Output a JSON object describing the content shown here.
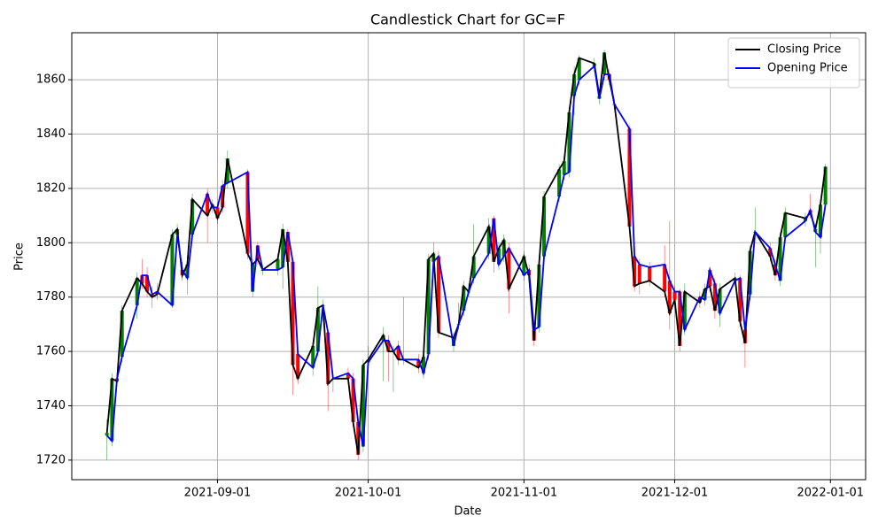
{
  "chart_data": {
    "type": "candlestick",
    "title": "Candlestick Chart for GC=F",
    "x_label": "Date",
    "y_label": "Price",
    "x": [
      "2021-08-10",
      "2021-08-11",
      "2021-08-12",
      "2021-08-13",
      "2021-08-16",
      "2021-08-17",
      "2021-08-18",
      "2021-08-19",
      "2021-08-20",
      "2021-08-23",
      "2021-08-24",
      "2021-08-25",
      "2021-08-26",
      "2021-08-27",
      "2021-08-30",
      "2021-08-31",
      "2021-09-01",
      "2021-09-02",
      "2021-09-03",
      "2021-09-07",
      "2021-09-08",
      "2021-09-09",
      "2021-09-10",
      "2021-09-13",
      "2021-09-14",
      "2021-09-15",
      "2021-09-16",
      "2021-09-17",
      "2021-09-20",
      "2021-09-21",
      "2021-09-22",
      "2021-09-23",
      "2021-09-24",
      "2021-09-27",
      "2021-09-28",
      "2021-09-29",
      "2021-09-30",
      "2021-10-01",
      "2021-10-04",
      "2021-10-05",
      "2021-10-06",
      "2021-10-07",
      "2021-10-08",
      "2021-10-11",
      "2021-10-12",
      "2021-10-13",
      "2021-10-14",
      "2021-10-15",
      "2021-10-18",
      "2021-10-19",
      "2021-10-20",
      "2021-10-21",
      "2021-10-22",
      "2021-10-25",
      "2021-10-26",
      "2021-10-27",
      "2021-10-28",
      "2021-10-29",
      "2021-11-01",
      "2021-11-02",
      "2021-11-03",
      "2021-11-04",
      "2021-11-05",
      "2021-11-08",
      "2021-11-09",
      "2021-11-10",
      "2021-11-11",
      "2021-11-12",
      "2021-11-15",
      "2021-11-16",
      "2021-11-17",
      "2021-11-18",
      "2021-11-19",
      "2021-11-22",
      "2021-11-23",
      "2021-11-24",
      "2021-11-26",
      "2021-11-29",
      "2021-11-30",
      "2021-12-01",
      "2021-12-02",
      "2021-12-03",
      "2021-12-06",
      "2021-12-07",
      "2021-12-08",
      "2021-12-09",
      "2021-12-10",
      "2021-12-13",
      "2021-12-14",
      "2021-12-15",
      "2021-12-16",
      "2021-12-17",
      "2021-12-20",
      "2021-12-21",
      "2021-12-22",
      "2021-12-23",
      "2021-12-27",
      "2021-12-28",
      "2021-12-29",
      "2021-12-30",
      "2021-12-31"
    ],
    "series": [
      {
        "name": "Closing Price",
        "color": "#000000",
        "values": [
          1730,
          1750,
          1749,
          1775,
          1787,
          1785,
          1782,
          1780,
          1781,
          1803,
          1805,
          1788,
          1792,
          1816,
          1810,
          1814,
          1809,
          1813,
          1831,
          1796,
          1792,
          1794,
          1790,
          1794,
          1805,
          1793,
          1755,
          1750,
          1762,
          1776,
          1777,
          1748,
          1750,
          1750,
          1734,
          1722,
          1755,
          1757,
          1766,
          1760,
          1760,
          1757,
          1757,
          1754,
          1758,
          1794,
          1796,
          1767,
          1765,
          1770,
          1784,
          1782,
          1795,
          1806,
          1793,
          1798,
          1801,
          1783,
          1795,
          1788,
          1764,
          1792,
          1817,
          1827,
          1830,
          1848,
          1862,
          1868,
          1866,
          1854,
          1870,
          1860,
          1851,
          1806,
          1784,
          1785,
          1786,
          1782,
          1774,
          1779,
          1762,
          1782,
          1778,
          1783,
          1784,
          1775,
          1783,
          1787,
          1771,
          1763,
          1797,
          1804,
          1795,
          1788,
          1802,
          1811,
          1809,
          1811,
          1805,
          1814,
          1828
        ]
      },
      {
        "name": "Opening Price",
        "color": "#0000ff",
        "values": [
          1729,
          1727,
          1750,
          1758,
          1777,
          1788,
          1788,
          1781,
          1782,
          1777,
          1803,
          1790,
          1787,
          1803,
          1818,
          1813,
          1813,
          1821,
          1822,
          1826,
          1782,
          1799,
          1790,
          1790,
          1791,
          1804,
          1793,
          1759,
          1754,
          1760,
          1777,
          1767,
          1750,
          1752,
          1750,
          1734,
          1725,
          1756,
          1764,
          1764,
          1760,
          1762,
          1757,
          1757,
          1752,
          1759,
          1793,
          1795,
          1762,
          1770,
          1775,
          1782,
          1787,
          1796,
          1809,
          1792,
          1795,
          1798,
          1788,
          1790,
          1768,
          1769,
          1795,
          1817,
          1825,
          1826,
          1854,
          1860,
          1865,
          1853,
          1862,
          1862,
          1851,
          1842,
          1795,
          1792,
          1791,
          1792,
          1786,
          1782,
          1782,
          1768,
          1780,
          1779,
          1790,
          1785,
          1774,
          1786,
          1787,
          1768,
          1781,
          1804,
          1798,
          1792,
          1786,
          1802,
          1808,
          1812,
          1804,
          1802,
          1814
        ]
      }
    ],
    "high": [
      1735,
      1752,
      1752,
      1777,
      1789,
      1794,
      1791,
      1784,
      1785,
      1805,
      1807,
      1793,
      1795,
      1818,
      1820,
      1816,
      1815,
      1823,
      1834,
      1827,
      1794,
      1800,
      1792,
      1796,
      1807,
      1805,
      1794,
      1761,
      1764,
      1784,
      1779,
      1768,
      1752,
      1754,
      1752,
      1736,
      1757,
      1762,
      1769,
      1766,
      1762,
      1764,
      1780,
      1759,
      1760,
      1796,
      1800,
      1797,
      1767,
      1778,
      1786,
      1785,
      1807,
      1809,
      1810,
      1800,
      1803,
      1800,
      1797,
      1792,
      1770,
      1794,
      1819,
      1829,
      1832,
      1850,
      1865,
      1869,
      1868,
      1856,
      1871,
      1864,
      1853,
      1843,
      1797,
      1794,
      1793,
      1799,
      1808,
      1784,
      1783,
      1785,
      1782,
      1785,
      1791,
      1787,
      1785,
      1789,
      1788,
      1770,
      1799,
      1813,
      1800,
      1794,
      1804,
      1813,
      1811,
      1818,
      1807,
      1816,
      1829
    ],
    "low": [
      1720,
      1725,
      1747,
      1756,
      1772,
      1783,
      1780,
      1776,
      1779,
      1776,
      1800,
      1786,
      1781,
      1801,
      1800,
      1811,
      1807,
      1811,
      1820,
      1794,
      1780,
      1792,
      1788,
      1788,
      1783,
      1791,
      1744,
      1748,
      1751,
      1758,
      1771,
      1738,
      1745,
      1748,
      1732,
      1720,
      1723,
      1754,
      1749,
      1749,
      1745,
      1755,
      1755,
      1752,
      1750,
      1757,
      1791,
      1765,
      1760,
      1768,
      1773,
      1780,
      1785,
      1794,
      1789,
      1790,
      1793,
      1774,
      1786,
      1786,
      1762,
      1767,
      1793,
      1815,
      1823,
      1824,
      1847,
      1858,
      1863,
      1851,
      1860,
      1858,
      1849,
      1804,
      1782,
      1781,
      1784,
      1780,
      1768,
      1777,
      1760,
      1766,
      1776,
      1777,
      1782,
      1772,
      1769,
      1784,
      1769,
      1754,
      1779,
      1802,
      1793,
      1786,
      1784,
      1800,
      1806,
      1809,
      1791,
      1796,
      1812
    ],
    "up_color": "#008000",
    "down_color": "#ff0000",
    "xlim": [
      "2021-08-03",
      "2022-01-08"
    ],
    "xticks": [
      "2021-09-01",
      "2021-10-01",
      "2021-11-01",
      "2021-12-01",
      "2022-01-01"
    ],
    "ylim": [
      1712.8,
      1877.3
    ],
    "yticks": [
      1720,
      1740,
      1760,
      1780,
      1800,
      1820,
      1840,
      1860
    ],
    "grid": true,
    "legend": "upper right"
  }
}
